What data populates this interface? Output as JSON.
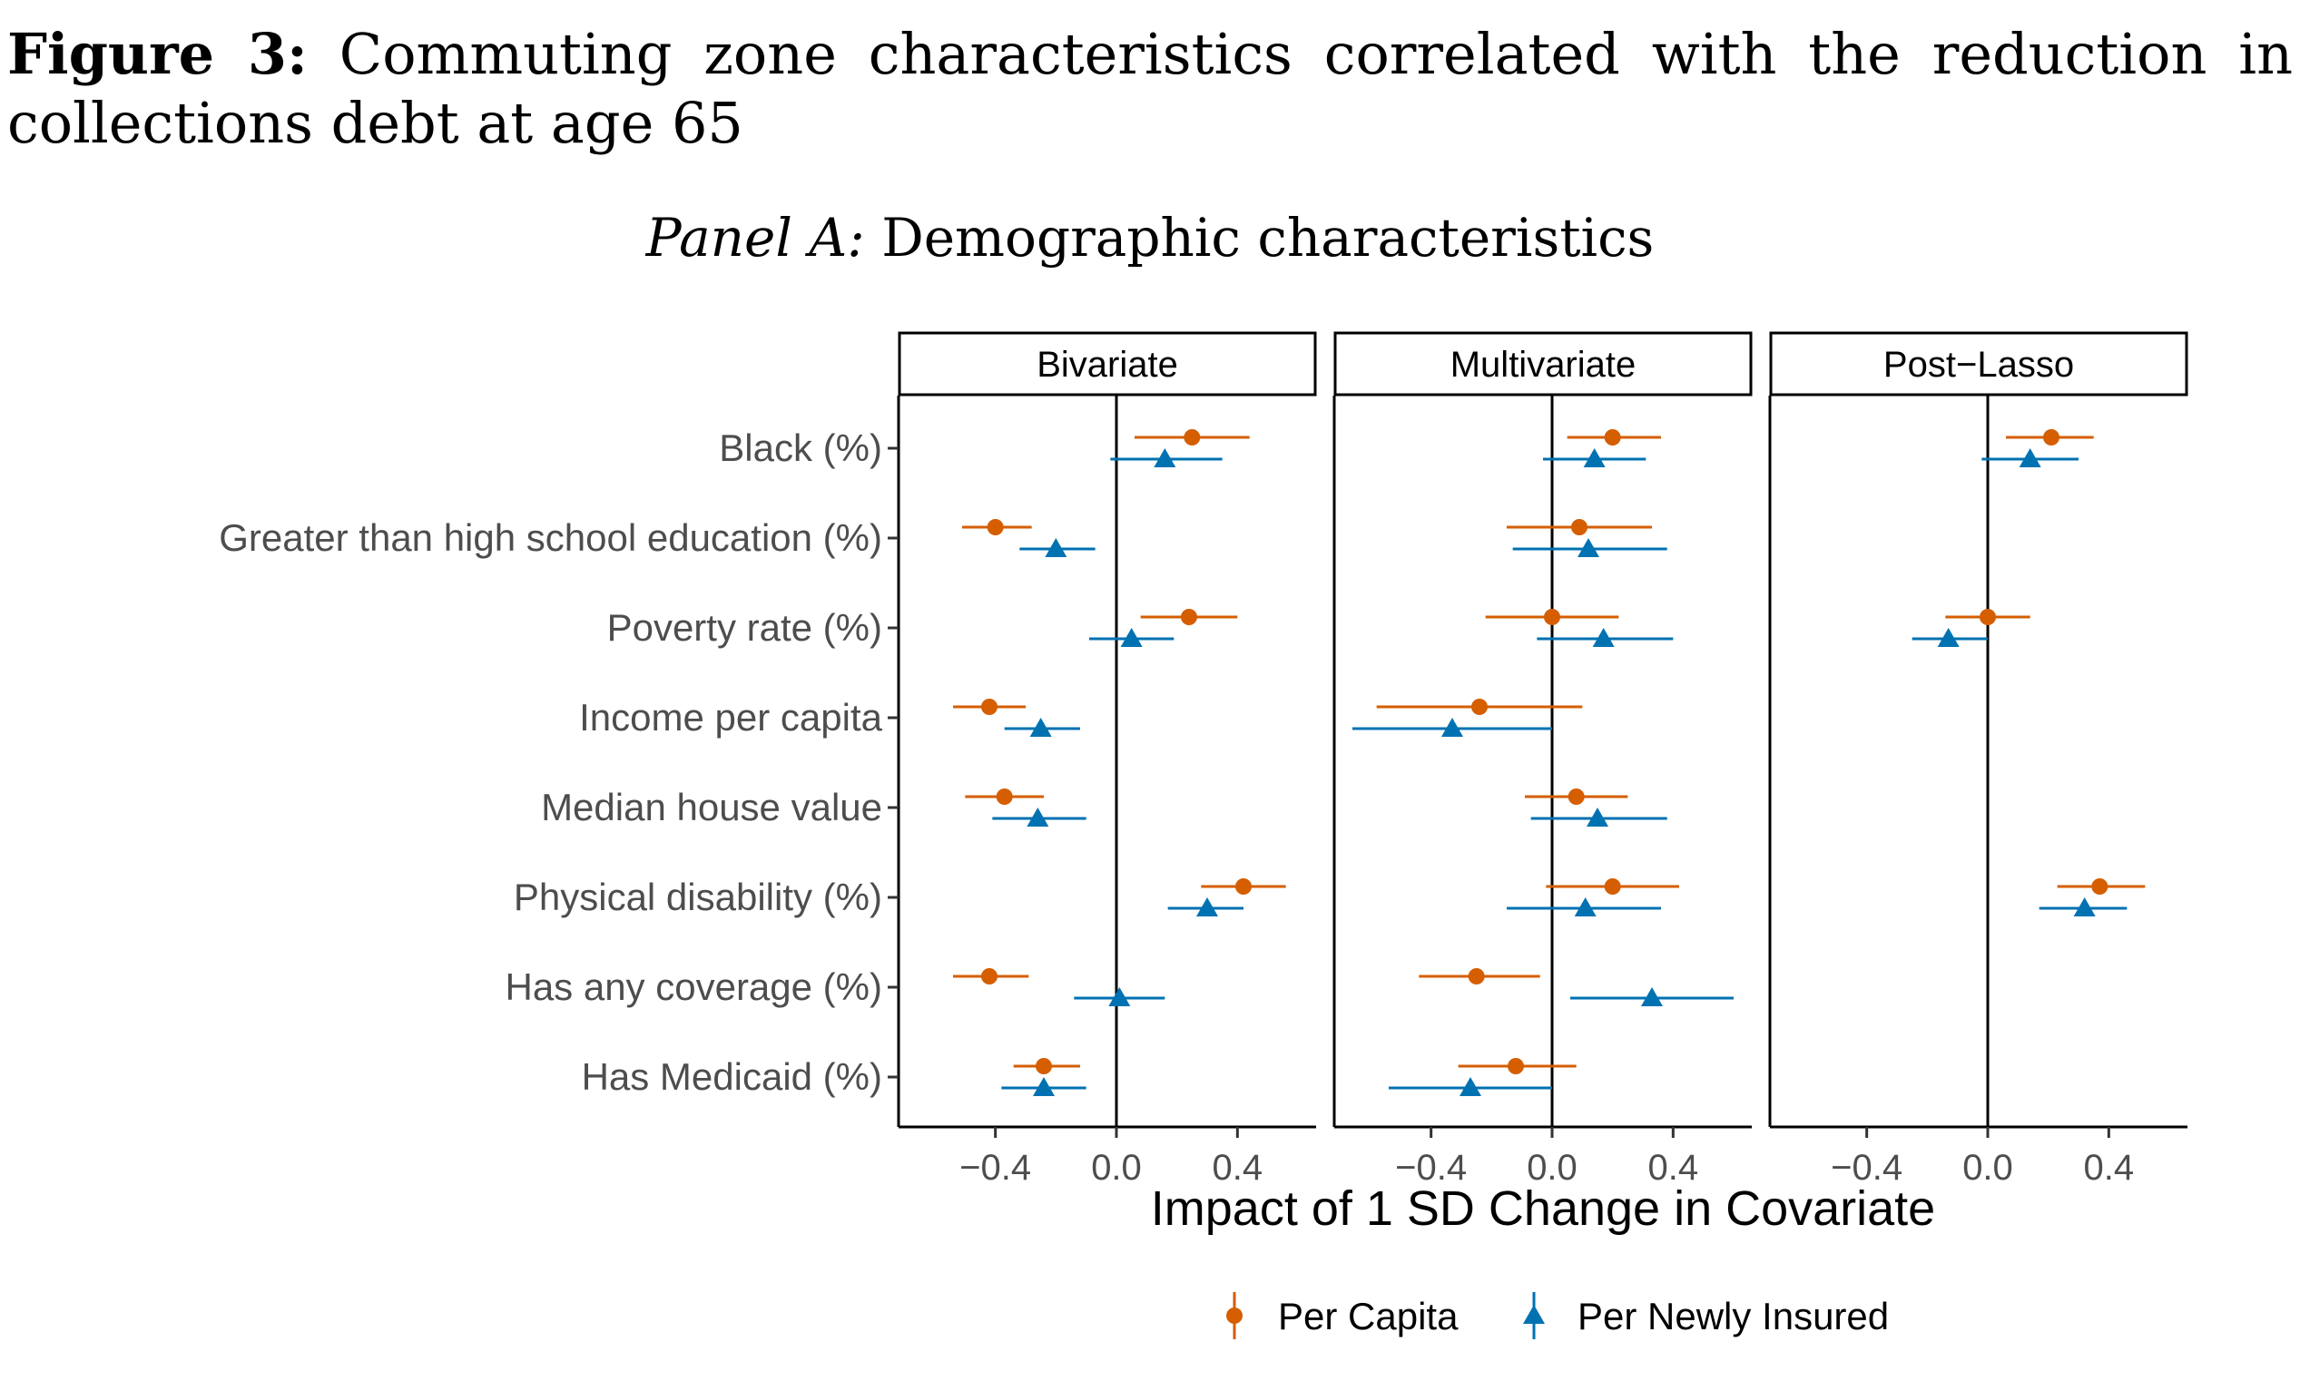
{
  "figure": {
    "label": "Figure 3:",
    "title": "Commuting zone characteristics correlated with the reduction in collections debt at age 65"
  },
  "panel": {
    "label": "Panel A:",
    "title": "Demographic characteristics"
  },
  "chart_data": {
    "type": "scatter",
    "subtype": "coefficient-plot-with-confidence-intervals",
    "facets": [
      "Bivariate",
      "Multivariate",
      "Post−Lasso"
    ],
    "categories": [
      "Black (%)",
      "Greater than high school education (%)",
      "Poverty rate (%)",
      "Income per capita",
      "Median house value",
      "Physical disability (%)",
      "Has any coverage (%)",
      "Has Medicaid (%)"
    ],
    "xlabel": "Impact of 1 SD Change in Covariate",
    "xlim": [
      -0.72,
      0.66
    ],
    "xticks": [
      -0.4,
      0.0,
      0.4
    ],
    "xtick_labels": [
      "−0.4",
      "0.0",
      "0.4"
    ],
    "reference_line_x": 0,
    "grid": false,
    "legend_position": "bottom",
    "series": [
      {
        "name": "Per Capita",
        "color": "#D55E00",
        "marker": "circle",
        "points": [
          {
            "facet": "Bivariate",
            "category": "Black (%)",
            "estimate": 0.25,
            "low": 0.06,
            "high": 0.44
          },
          {
            "facet": "Bivariate",
            "category": "Greater than high school education (%)",
            "estimate": -0.4,
            "low": -0.51,
            "high": -0.28
          },
          {
            "facet": "Bivariate",
            "category": "Poverty rate (%)",
            "estimate": 0.24,
            "low": 0.08,
            "high": 0.4
          },
          {
            "facet": "Bivariate",
            "category": "Income per capita",
            "estimate": -0.42,
            "low": -0.54,
            "high": -0.3
          },
          {
            "facet": "Bivariate",
            "category": "Median house value",
            "estimate": -0.37,
            "low": -0.5,
            "high": -0.24
          },
          {
            "facet": "Bivariate",
            "category": "Physical disability (%)",
            "estimate": 0.42,
            "low": 0.28,
            "high": 0.56
          },
          {
            "facet": "Bivariate",
            "category": "Has any coverage (%)",
            "estimate": -0.42,
            "low": -0.54,
            "high": -0.29
          },
          {
            "facet": "Bivariate",
            "category": "Has Medicaid (%)",
            "estimate": -0.24,
            "low": -0.34,
            "high": -0.12
          },
          {
            "facet": "Multivariate",
            "category": "Black (%)",
            "estimate": 0.2,
            "low": 0.05,
            "high": 0.36
          },
          {
            "facet": "Multivariate",
            "category": "Greater than high school education (%)",
            "estimate": 0.09,
            "low": -0.15,
            "high": 0.33
          },
          {
            "facet": "Multivariate",
            "category": "Poverty rate (%)",
            "estimate": 0.0,
            "low": -0.22,
            "high": 0.22
          },
          {
            "facet": "Multivariate",
            "category": "Income per capita",
            "estimate": -0.24,
            "low": -0.58,
            "high": 0.1
          },
          {
            "facet": "Multivariate",
            "category": "Median house value",
            "estimate": 0.08,
            "low": -0.09,
            "high": 0.25
          },
          {
            "facet": "Multivariate",
            "category": "Physical disability (%)",
            "estimate": 0.2,
            "low": -0.02,
            "high": 0.42
          },
          {
            "facet": "Multivariate",
            "category": "Has any coverage (%)",
            "estimate": -0.25,
            "low": -0.44,
            "high": -0.04
          },
          {
            "facet": "Multivariate",
            "category": "Has Medicaid (%)",
            "estimate": -0.12,
            "low": -0.31,
            "high": 0.08
          },
          {
            "facet": "Post−Lasso",
            "category": "Black (%)",
            "estimate": 0.21,
            "low": 0.06,
            "high": 0.35
          },
          {
            "facet": "Post−Lasso",
            "category": "Poverty rate (%)",
            "estimate": 0.0,
            "low": -0.14,
            "high": 0.14
          },
          {
            "facet": "Post−Lasso",
            "category": "Physical disability (%)",
            "estimate": 0.37,
            "low": 0.23,
            "high": 0.52
          }
        ]
      },
      {
        "name": "Per Newly Insured",
        "color": "#0072B2",
        "marker": "triangle",
        "points": [
          {
            "facet": "Bivariate",
            "category": "Black (%)",
            "estimate": 0.16,
            "low": -0.02,
            "high": 0.35
          },
          {
            "facet": "Bivariate",
            "category": "Greater than high school education (%)",
            "estimate": -0.2,
            "low": -0.32,
            "high": -0.07
          },
          {
            "facet": "Bivariate",
            "category": "Poverty rate (%)",
            "estimate": 0.05,
            "low": -0.09,
            "high": 0.19
          },
          {
            "facet": "Bivariate",
            "category": "Income per capita",
            "estimate": -0.25,
            "low": -0.37,
            "high": -0.12
          },
          {
            "facet": "Bivariate",
            "category": "Median house value",
            "estimate": -0.26,
            "low": -0.41,
            "high": -0.1
          },
          {
            "facet": "Bivariate",
            "category": "Physical disability (%)",
            "estimate": 0.3,
            "low": 0.17,
            "high": 0.42
          },
          {
            "facet": "Bivariate",
            "category": "Has any coverage (%)",
            "estimate": 0.01,
            "low": -0.14,
            "high": 0.16
          },
          {
            "facet": "Bivariate",
            "category": "Has Medicaid (%)",
            "estimate": -0.24,
            "low": -0.38,
            "high": -0.1
          },
          {
            "facet": "Multivariate",
            "category": "Black (%)",
            "estimate": 0.14,
            "low": -0.03,
            "high": 0.31
          },
          {
            "facet": "Multivariate",
            "category": "Greater than high school education (%)",
            "estimate": 0.12,
            "low": -0.13,
            "high": 0.38
          },
          {
            "facet": "Multivariate",
            "category": "Poverty rate (%)",
            "estimate": 0.17,
            "low": -0.05,
            "high": 0.4
          },
          {
            "facet": "Multivariate",
            "category": "Income per capita",
            "estimate": -0.33,
            "low": -0.66,
            "high": 0.0
          },
          {
            "facet": "Multivariate",
            "category": "Median house value",
            "estimate": 0.15,
            "low": -0.07,
            "high": 0.38
          },
          {
            "facet": "Multivariate",
            "category": "Physical disability (%)",
            "estimate": 0.11,
            "low": -0.15,
            "high": 0.36
          },
          {
            "facet": "Multivariate",
            "category": "Has any coverage (%)",
            "estimate": 0.33,
            "low": 0.06,
            "high": 0.6
          },
          {
            "facet": "Multivariate",
            "category": "Has Medicaid (%)",
            "estimate": -0.27,
            "low": -0.54,
            "high": 0.0
          },
          {
            "facet": "Post−Lasso",
            "category": "Black (%)",
            "estimate": 0.14,
            "low": -0.02,
            "high": 0.3
          },
          {
            "facet": "Post−Lasso",
            "category": "Poverty rate (%)",
            "estimate": -0.13,
            "low": -0.25,
            "high": 0.0
          },
          {
            "facet": "Post−Lasso",
            "category": "Physical disability (%)",
            "estimate": 0.32,
            "low": 0.17,
            "high": 0.46
          }
        ]
      }
    ]
  }
}
